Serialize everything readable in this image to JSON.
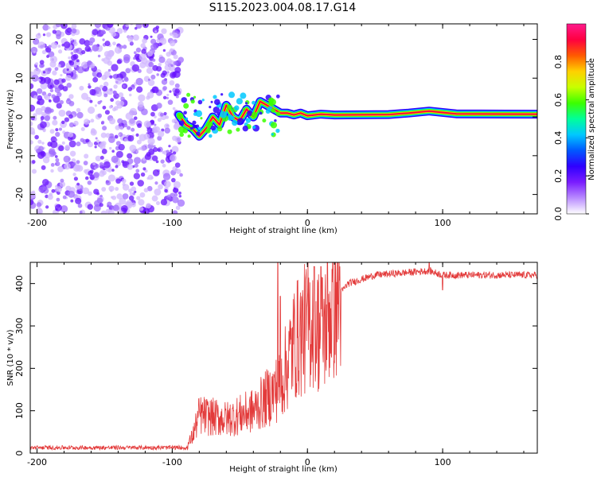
{
  "title": "S115.2023.004.08.17.G14",
  "colors": {
    "snr_line": "#e33b3b",
    "spectrum_background_noise": "#8a3cff",
    "colormap": [
      "#ffffff",
      "#b98cff",
      "#7a1cff",
      "#2f00ff",
      "#0058ff",
      "#00c8ff",
      "#00ff9a",
      "#3cff00",
      "#c8ff00",
      "#ffd000",
      "#ff5a00",
      "#ff0040",
      "#ff1a8c"
    ]
  },
  "chart_data": [
    {
      "type": "heatmap",
      "name": "spectrogram",
      "xlabel": "Height of straight line (km)",
      "ylabel": "Frequency (Hz)",
      "xlim": [
        -205,
        170
      ],
      "ylim": [
        -25,
        24
      ],
      "xticks": [
        -200,
        -100,
        0,
        100
      ],
      "yticks": [
        -20,
        -10,
        0,
        10,
        20
      ],
      "noise_region_x": [
        -205,
        -93
      ],
      "signal_trace": [
        {
          "x": -95,
          "y": 0.5
        },
        {
          "x": -90,
          "y": -2
        },
        {
          "x": -85,
          "y": -3
        },
        {
          "x": -80,
          "y": -5
        },
        {
          "x": -75,
          "y": -3
        },
        {
          "x": -70,
          "y": 0
        },
        {
          "x": -65,
          "y": -2
        },
        {
          "x": -60,
          "y": 3
        },
        {
          "x": -55,
          "y": 0
        },
        {
          "x": -50,
          "y": -1
        },
        {
          "x": -45,
          "y": 2
        },
        {
          "x": -40,
          "y": 0
        },
        {
          "x": -35,
          "y": 4
        },
        {
          "x": -30,
          "y": 3
        },
        {
          "x": -25,
          "y": 2
        },
        {
          "x": -20,
          "y": 1
        },
        {
          "x": -15,
          "y": 1
        },
        {
          "x": -10,
          "y": 0.5
        },
        {
          "x": -5,
          "y": 1
        },
        {
          "x": 0,
          "y": 0.3
        },
        {
          "x": 5,
          "y": 0.5
        },
        {
          "x": 10,
          "y": 0.7
        },
        {
          "x": 20,
          "y": 0.5
        },
        {
          "x": 60,
          "y": 0.6
        },
        {
          "x": 75,
          "y": 1
        },
        {
          "x": 90,
          "y": 1.5
        },
        {
          "x": 110,
          "y": 0.8
        },
        {
          "x": 170,
          "y": 0.7
        }
      ],
      "colorbar": {
        "label": "Normalized spectral amplitude",
        "range": [
          0,
          1
        ],
        "ticks": [
          "0.0",
          "0.2",
          "0.4",
          "0.6",
          "0.8"
        ],
        "tick_values": [
          0,
          0.2,
          0.4,
          0.6,
          0.8
        ]
      }
    },
    {
      "type": "line",
      "name": "snr",
      "xlabel": "Height of straight line (km)",
      "ylabel": "SNR (10 * v/v)",
      "xlim": [
        -205,
        170
      ],
      "ylim": [
        0,
        450
      ],
      "xticks": [
        -200,
        -100,
        0,
        100
      ],
      "yticks": [
        0,
        100,
        200,
        300,
        400
      ],
      "profile": [
        {
          "x": -205,
          "y": 10
        },
        {
          "x": -90,
          "y": 10
        },
        {
          "x": -85,
          "y": 40
        },
        {
          "x": -80,
          "y": 90
        },
        {
          "x": -60,
          "y": 80
        },
        {
          "x": -40,
          "y": 100
        },
        {
          "x": -20,
          "y": 160
        },
        {
          "x": -10,
          "y": 260
        },
        {
          "x": 5,
          "y": 320
        },
        {
          "x": 10,
          "y": 280
        },
        {
          "x": 20,
          "y": 360
        },
        {
          "x": 30,
          "y": 400
        },
        {
          "x": 50,
          "y": 420
        },
        {
          "x": 90,
          "y": 430
        },
        {
          "x": 100,
          "y": 420
        },
        {
          "x": 170,
          "y": 420
        }
      ],
      "spikes": [
        {
          "x": -22,
          "y": 450
        },
        {
          "x": -20,
          "y": 370
        },
        {
          "x": 5,
          "y": 440
        },
        {
          "x": 10,
          "y": 440
        },
        {
          "x": 90,
          "y": 450
        },
        {
          "x": 100,
          "y": 385
        }
      ]
    }
  ]
}
